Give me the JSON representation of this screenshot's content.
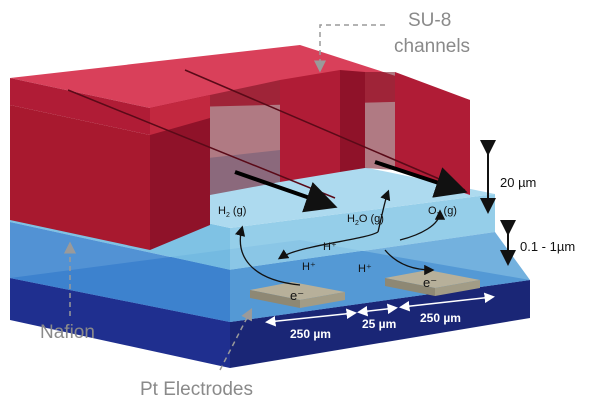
{
  "labels": {
    "su8_line1": "SU-8",
    "su8_line2": "channels",
    "nafion": "Nafion",
    "pt_electrodes": "Pt Electrodes",
    "height_channel": "20 µm",
    "height_nafion": "0.1 - 1µm",
    "width_left": "250 µm",
    "width_gap": "25 µm",
    "width_right": "250 µm"
  },
  "species": {
    "h2_main": "H",
    "h2_sub": "2",
    "h2_suffix": " (g)",
    "h2o_main": "H",
    "h2o_sub": "2",
    "h2o_suffix": "O (g)",
    "o2_main": "O",
    "o2_sub": "2",
    "o2_suffix": " (g)",
    "proton_a": "H⁺",
    "proton_b": "H⁺",
    "proton_c": "H⁺",
    "electron_left": "e⁻",
    "electron_right": "e⁻"
  },
  "colors": {
    "su8_front": "#b01c36",
    "su8_top": "#d9405a",
    "su8_side": "#8f1229",
    "nafion_top": "#a9d8ee",
    "nafion_front": "#78bfe3",
    "substrate_top": "#2f5fbf",
    "substrate_front": "#1f2f8f",
    "substrate_side": "#1a2676",
    "electrode": "#b7b09a",
    "dim_text_color": "#111111"
  }
}
